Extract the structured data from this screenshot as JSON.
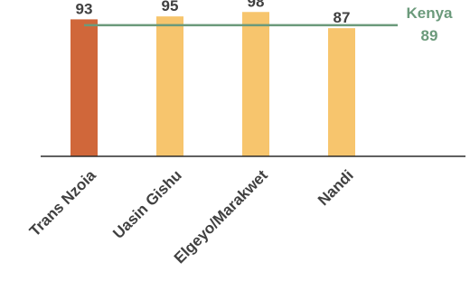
{
  "chart_data": {
    "type": "bar",
    "categories": [
      "Trans Nzoia",
      "Uasin Gishu",
      "Elgeyo/Marakwet",
      "Nandi"
    ],
    "values": [
      93,
      95,
      98,
      87
    ],
    "value_labels": [
      "93",
      "95",
      "98",
      "87"
    ],
    "ylim": [
      0,
      100
    ],
    "grid": false,
    "bar_colors": [
      "#d0673a",
      "#f7c56d",
      "#f7c56d",
      "#f7c56d"
    ],
    "reference_line": {
      "name": "Kenya",
      "value": 89,
      "value_label": "89",
      "color": "#6b9a7b"
    },
    "axis_color": "#2b2b2b"
  }
}
